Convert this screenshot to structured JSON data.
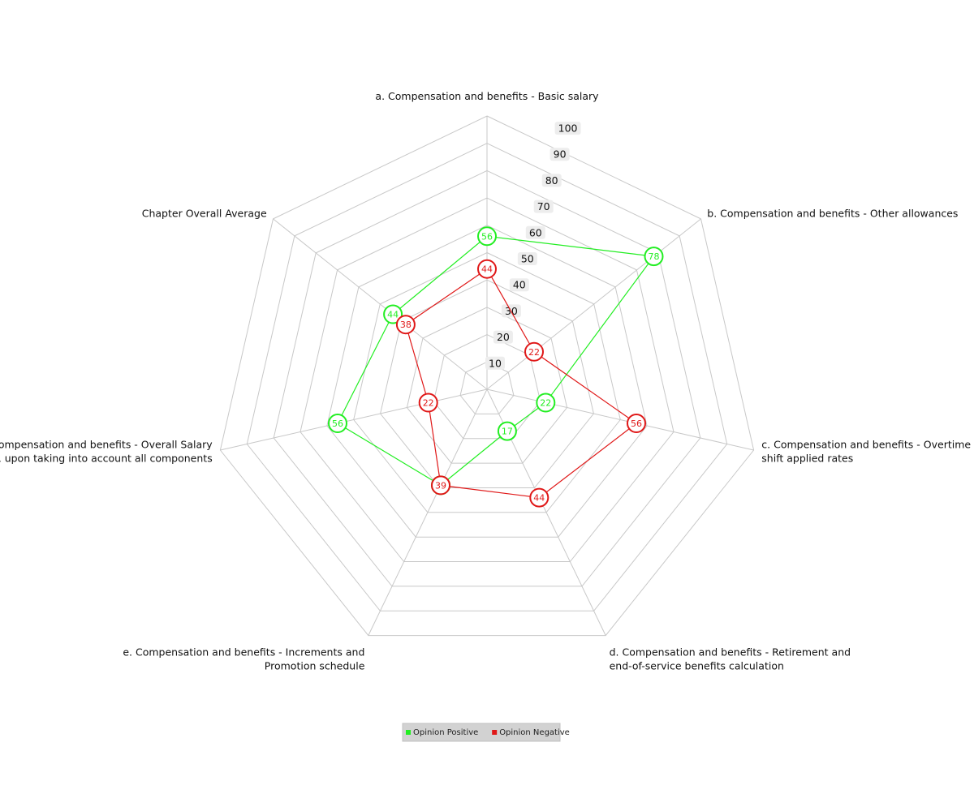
{
  "chart_data": {
    "type": "radar",
    "axes": [
      [
        "a. Compensation and benefits - Basic salary"
      ],
      [
        "b. Compensation and benefits - Other allowances"
      ],
      [
        "c. Compensation and benefits - Overtime  night",
        "shift applied rates"
      ],
      [
        "d. Compensation and benefits - Retirement and",
        "end-of-service benefits calculation"
      ],
      [
        "e. Compensation and benefits - Increments and",
        "Promotion schedule"
      ],
      [
        "f. Compensation and benefits - Overall Salary",
        "package, upon taking into account all components"
      ],
      [
        "Chapter Overall Average"
      ]
    ],
    "rlim": [
      0,
      100
    ],
    "ticks": [
      "10",
      "20",
      "30",
      "40",
      "50",
      "60",
      "70",
      "80",
      "90",
      "100"
    ],
    "grid": true,
    "series": [
      {
        "name": "Opinion Positive",
        "color": "#22ee22",
        "values": [
          56,
          78,
          22,
          17,
          39,
          56,
          44
        ]
      },
      {
        "name": "Opinion Negative",
        "color": "#e01818",
        "values": [
          44,
          22,
          56,
          44,
          39,
          22,
          38
        ]
      }
    ],
    "legend_position": "bottom-center"
  }
}
